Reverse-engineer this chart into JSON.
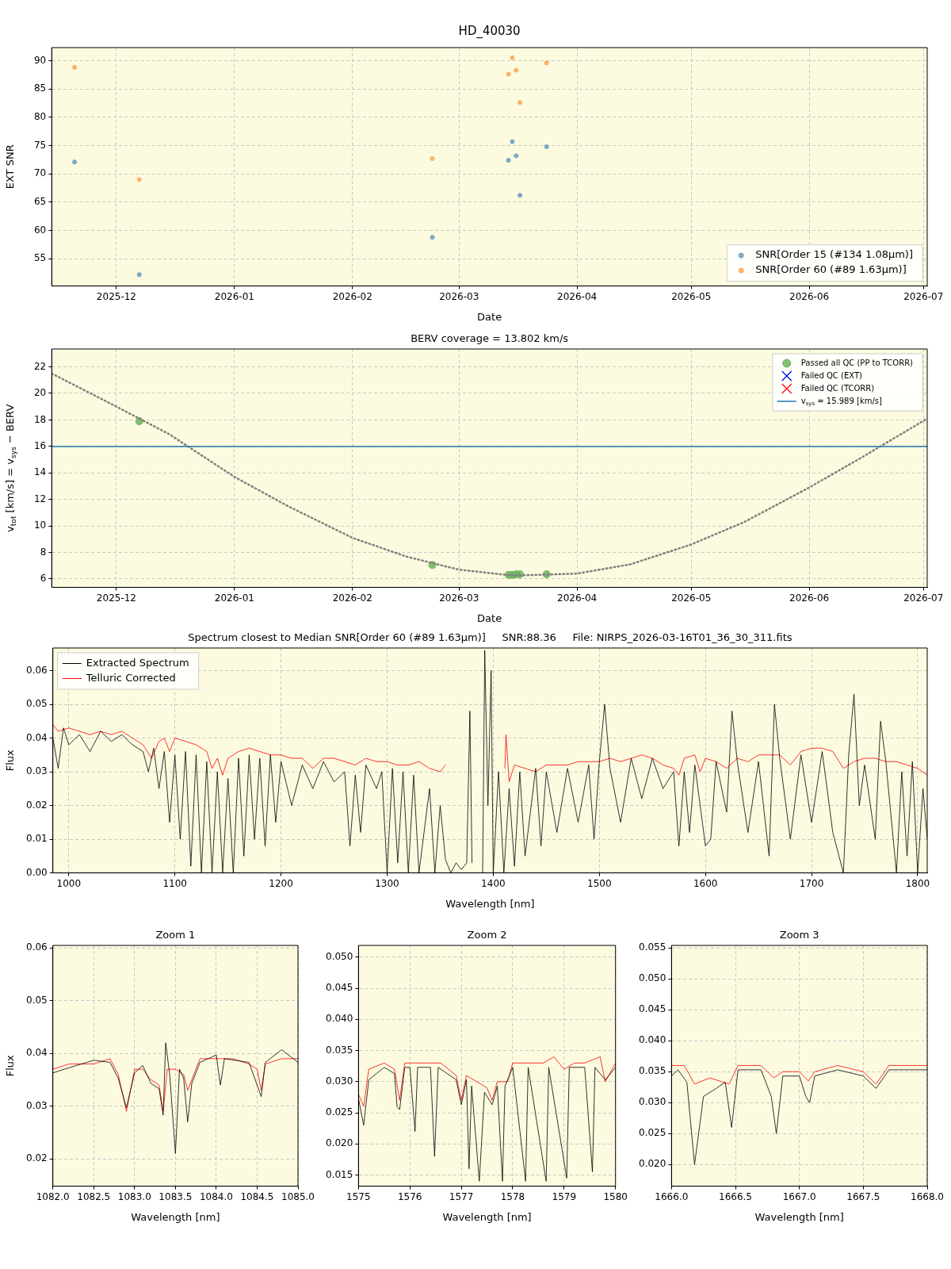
{
  "chart_data": [
    {
      "type": "scatter",
      "title": "HD_40030",
      "xlabel": "Date",
      "ylabel": "EXT SNR",
      "x": [
        "2025-11-20",
        "2025-12-07",
        "2026-02-22",
        "2026-03-14",
        "2026-03-15",
        "2026-03-16",
        "2026-03-17",
        "2026-03-24"
      ],
      "series": [
        {
          "name": "SNR[Order 15 (#134 1.08μm)]",
          "color": "#6a9fc0",
          "values": [
            72.1,
            52.2,
            58.8,
            72.4,
            75.7,
            73.2,
            66.2,
            74.8
          ]
        },
        {
          "name": "SNR[Order 60 (#89 1.63μm)]",
          "color": "#fda85a",
          "values": [
            88.8,
            69.0,
            72.7,
            87.6,
            90.5,
            88.3,
            82.6,
            89.6
          ]
        }
      ],
      "xlim": [
        "2025-11-14",
        "2026-07-02"
      ],
      "xticks": [
        "2025-12",
        "2026-01",
        "2026-02",
        "2026-03",
        "2026-04",
        "2026-05",
        "2026-06",
        "2026-07"
      ],
      "ylim": [
        50.2,
        92.3
      ],
      "yticks": [
        55,
        60,
        65,
        70,
        75,
        80,
        85,
        90
      ],
      "grid": true,
      "legend": "bottom right",
      "marker": "circle"
    },
    {
      "type": "scatter",
      "title": "BERV coverage = 13.802 km/s",
      "xlabel": "Date",
      "ylabel": "v$_{tot}$ [km/s] = v$_{sys}$ − BERV",
      "x": [
        "2025-12-07",
        "2026-02-22",
        "2026-03-14",
        "2026-03-15",
        "2026-03-16",
        "2026-03-17",
        "2026-03-24"
      ],
      "series": [
        {
          "type": "line",
          "color": "#808080",
          "line_style": "dotted",
          "marker": "none",
          "x": [
            "2025-11-14",
            "2025-12-01",
            "2025-12-15",
            "2026-01-01",
            "2026-01-15",
            "2026-02-01",
            "2026-02-15",
            "2026-03-01",
            "2026-03-15",
            "2026-04-01",
            "2026-04-15",
            "2026-05-01",
            "2026-05-15",
            "2026-06-01",
            "2026-06-15",
            "2026-07-02"
          ],
          "values": [
            21.5,
            19.0,
            16.9,
            13.7,
            11.5,
            9.1,
            7.7,
            6.7,
            6.25,
            6.4,
            7.1,
            8.6,
            10.3,
            12.9,
            15.2,
            18.1
          ]
        },
        {
          "name": "Passed all QC (PP to TCORR)",
          "color": "#6cb35e",
          "values": [
            17.9,
            7.05,
            6.3,
            6.3,
            6.35,
            6.35,
            6.35
          ]
        },
        {
          "name": "Failed QC (EXT)",
          "color": "#0000ff",
          "marker": "cross",
          "values": [
            null,
            null,
            null,
            null,
            null,
            null,
            null
          ]
        },
        {
          "name": "Failed QC (TCORR)",
          "color": "#ff0000",
          "marker": "cross",
          "values": [
            null,
            null,
            null,
            null,
            null,
            null,
            null
          ]
        }
      ],
      "ref_lines": [
        {
          "axis": "y",
          "value": 15.989,
          "label": "v$_{sys}$ = 15.989 [km/s]",
          "color": "#1f77b4"
        }
      ],
      "xlim": [
        "2025-11-14",
        "2026-07-02"
      ],
      "xticks": [
        "2025-12",
        "2026-01",
        "2026-02",
        "2026-03",
        "2026-04",
        "2026-05",
        "2026-06",
        "2026-07"
      ],
      "ylim": [
        5.36,
        23.35
      ],
      "yticks": [
        6,
        8,
        10,
        12,
        14,
        16,
        18,
        20,
        22
      ],
      "grid": true,
      "legend": "top right",
      "marker": "circle"
    },
    {
      "type": "line",
      "title": "Spectrum closest to Median SNR[Order 60 (#89 1.63μm)]     SNR:88.36     File: NIRPS_2026-03-16T01_36_30_311.fits",
      "xlabel": "Wavelength [nm]",
      "ylabel": "Flux",
      "series": [
        {
          "name": "Extracted Spectrum",
          "color": "#000000",
          "x": [
            985,
            990,
            995,
            1000,
            1010,
            1020,
            1030,
            1040,
            1050,
            1060,
            1070,
            1075,
            1080,
            1085,
            1090,
            1095,
            1100,
            1105,
            1110,
            1115,
            1120,
            1125,
            1130,
            1135,
            1140,
            1145,
            1150,
            1155,
            1160,
            1165,
            1170,
            1175,
            1180,
            1185,
            1190,
            1195,
            1200,
            1210,
            1220,
            1230,
            1240,
            1250,
            1260,
            1265,
            1270,
            1275,
            1280,
            1290,
            1295,
            1300,
            1305,
            1310,
            1315,
            1320,
            1325,
            1330,
            1340,
            1345,
            1350,
            1355,
            1360,
            1365,
            1370,
            1375,
            1378,
            1380,
            1385,
            1390,
            1392,
            1395,
            1398,
            1400,
            1405,
            1410,
            1415,
            1420,
            1425,
            1430,
            1440,
            1445,
            1450,
            1460,
            1470,
            1480,
            1490,
            1495,
            1500,
            1505,
            1510,
            1520,
            1530,
            1540,
            1550,
            1560,
            1570,
            1575,
            1580,
            1585,
            1590,
            1600,
            1605,
            1610,
            1620,
            1625,
            1630,
            1640,
            1650,
            1660,
            1665,
            1670,
            1680,
            1690,
            1700,
            1710,
            1720,
            1730,
            1735,
            1740,
            1745,
            1750,
            1760,
            1765,
            1770,
            1780,
            1785,
            1790,
            1795,
            1800,
            1805,
            1809
          ],
          "values": [
            0.04,
            0.031,
            0.043,
            0.038,
            0.041,
            0.036,
            0.042,
            0.039,
            0.041,
            0.038,
            0.036,
            0.03,
            0.037,
            0.025,
            0.036,
            0.015,
            0.035,
            0.01,
            0.036,
            0.002,
            0.035,
            0.0,
            0.033,
            0.0,
            0.03,
            0.0,
            0.028,
            0.0,
            0.034,
            0.005,
            0.035,
            0.01,
            0.034,
            0.008,
            0.035,
            0.015,
            0.033,
            0.02,
            0.032,
            0.025,
            0.033,
            0.027,
            0.03,
            0.008,
            0.029,
            0.012,
            0.032,
            0.025,
            0.03,
            0.0,
            0.031,
            0.003,
            0.03,
            0.0,
            0.029,
            0.0,
            0.025,
            0.0,
            0.02,
            0.004,
            0.0,
            0.003,
            0.001,
            0.003,
            0.048,
            0.003,
            null,
            0.0,
            0.066,
            0.02,
            0.06,
            0.0,
            0.03,
            0.0,
            0.025,
            0.002,
            0.03,
            0.005,
            0.031,
            0.008,
            0.03,
            0.012,
            0.031,
            0.015,
            0.032,
            0.01,
            0.033,
            0.05,
            0.031,
            0.015,
            0.034,
            0.022,
            0.034,
            0.025,
            0.03,
            0.008,
            0.03,
            0.012,
            0.032,
            0.008,
            0.01,
            0.033,
            0.018,
            0.048,
            0.033,
            0.012,
            0.033,
            0.005,
            0.05,
            0.034,
            0.01,
            0.035,
            0.015,
            0.036,
            0.012,
            0.0,
            0.035,
            0.053,
            0.02,
            0.032,
            0.01,
            0.045,
            0.033,
            0.0,
            0.03,
            0.005,
            0.033,
            0.0,
            0.025,
            0.01
          ]
        },
        {
          "name": "Telluric Corrected",
          "color": "#ff0000",
          "x": [
            985,
            990,
            1000,
            1010,
            1020,
            1030,
            1040,
            1050,
            1060,
            1070,
            1078,
            1085,
            1090,
            1095,
            1100,
            1110,
            1120,
            1130,
            1135,
            1140,
            1145,
            1150,
            1160,
            1170,
            1180,
            1190,
            1200,
            1210,
            1220,
            1230,
            1240,
            1250,
            1260,
            1270,
            1280,
            1290,
            1300,
            1310,
            1320,
            1330,
            1340,
            1350,
            1355,
            1380,
            1411,
            1412,
            1415,
            1420,
            1430,
            1440,
            1450,
            1460,
            1470,
            1480,
            1490,
            1500,
            1510,
            1520,
            1530,
            1540,
            1550,
            1560,
            1570,
            1575,
            1580,
            1590,
            1595,
            1600,
            1610,
            1620,
            1630,
            1640,
            1650,
            1660,
            1670,
            1680,
            1690,
            1700,
            1710,
            1720,
            1730,
            1740,
            1750,
            1760,
            1770,
            1780,
            1790,
            1800,
            1809
          ],
          "values": [
            0.044,
            0.042,
            0.043,
            0.042,
            0.041,
            0.042,
            0.041,
            0.042,
            0.04,
            0.038,
            0.034,
            0.039,
            0.04,
            0.036,
            0.04,
            0.039,
            0.038,
            0.036,
            0.031,
            0.034,
            0.029,
            0.034,
            0.036,
            0.037,
            0.036,
            0.035,
            0.035,
            0.034,
            0.034,
            0.031,
            0.034,
            0.034,
            0.033,
            0.032,
            0.034,
            0.033,
            0.033,
            0.032,
            0.032,
            0.033,
            0.031,
            0.03,
            0.032,
            null,
            0.031,
            0.041,
            0.027,
            0.032,
            0.031,
            0.03,
            0.032,
            0.032,
            0.032,
            0.033,
            0.033,
            0.033,
            0.034,
            0.033,
            0.034,
            0.035,
            0.034,
            0.032,
            0.031,
            0.029,
            0.034,
            0.035,
            0.03,
            0.034,
            0.033,
            0.031,
            0.034,
            0.033,
            0.035,
            0.035,
            0.035,
            0.032,
            0.036,
            0.037,
            0.037,
            0.036,
            0.031,
            0.033,
            0.034,
            0.034,
            0.033,
            0.033,
            0.032,
            0.031,
            0.029
          ]
        }
      ],
      "xlim": [
        985,
        1809
      ],
      "xticks": [
        1000,
        1100,
        1200,
        1300,
        1400,
        1500,
        1600,
        1700,
        1800
      ],
      "ylim": [
        0,
        0.0667
      ],
      "yticks": [
        {
          "value": 0,
          "label": "0.00"
        },
        {
          "value": 0.01,
          "label": "0.01"
        },
        {
          "value": 0.02,
          "label": "0.02"
        },
        {
          "value": 0.03,
          "label": "0.03"
        },
        {
          "value": 0.04,
          "label": "0.04"
        },
        {
          "value": 0.05,
          "label": "0.05"
        },
        {
          "value": 0.06,
          "label": "0.06"
        }
      ],
      "grid": true,
      "legend": "top left"
    },
    {
      "type": "line",
      "title": "Zoom 1",
      "xlabel": "Wavelength [nm]",
      "ylabel": "Flux",
      "series": [
        {
          "color": "#000000",
          "x": [
            1082,
            1082.2,
            1082.5,
            1082.7,
            1082.8,
            1082.9,
            1083.0,
            1083.1,
            1083.2,
            1083.3,
            1083.35,
            1083.38,
            1083.43,
            1083.5,
            1083.55,
            1083.6,
            1083.65,
            1083.7,
            1083.8,
            1084.0,
            1084.05,
            1084.1,
            1084.4,
            1084.55,
            1084.6,
            1084.8,
            1085
          ],
          "values": [
            0.0363,
            0.0373,
            0.0387,
            0.0383,
            0.0353,
            0.0297,
            0.0363,
            0.0377,
            0.0343,
            0.0333,
            0.0283,
            0.042,
            0.036,
            0.021,
            0.037,
            0.0353,
            0.027,
            0.0343,
            0.0383,
            0.0397,
            0.034,
            0.039,
            0.0383,
            0.0318,
            0.0383,
            0.0407,
            0.0383
          ]
        },
        {
          "color": "#ff0000",
          "x": [
            1082,
            1082.2,
            1082.5,
            1082.7,
            1082.8,
            1082.9,
            1083.0,
            1083.1,
            1083.2,
            1083.3,
            1083.35,
            1083.4,
            1083.5,
            1083.6,
            1083.65,
            1083.7,
            1083.8,
            1084.0,
            1084.2,
            1084.4,
            1084.5,
            1084.55,
            1084.6,
            1084.8,
            1085
          ],
          "values": [
            0.037,
            0.038,
            0.038,
            0.039,
            0.036,
            0.029,
            0.037,
            0.037,
            0.035,
            0.034,
            0.029,
            0.037,
            0.037,
            0.036,
            0.033,
            0.035,
            0.039,
            0.039,
            0.039,
            0.038,
            0.037,
            0.033,
            0.038,
            0.039,
            0.039
          ]
        }
      ],
      "xlim": [
        1082,
        1085
      ],
      "xticks": [
        {
          "value": 1082,
          "label": "1082.0"
        },
        {
          "value": 1082.5,
          "label": "1082.5"
        },
        {
          "value": 1083,
          "label": "1083.0"
        },
        {
          "value": 1083.5,
          "label": "1083.5"
        },
        {
          "value": 1084,
          "label": "1084.0"
        },
        {
          "value": 1084.5,
          "label": "1084.5"
        },
        {
          "value": 1085,
          "label": "1085.0"
        }
      ],
      "ylim": [
        0.0148,
        0.0605
      ],
      "yticks": [
        0.02,
        0.03,
        0.04,
        0.05,
        0.06
      ],
      "grid": true
    },
    {
      "type": "line",
      "title": "Zoom 2",
      "xlabel": "Wavelength [nm]",
      "series": [
        {
          "color": "#000000",
          "x": [
            1575,
            1575.1,
            1575.2,
            1575.5,
            1575.7,
            1575.75,
            1575.8,
            1575.9,
            1576.0,
            1576.1,
            1576.15,
            1576.4,
            1576.48,
            1576.55,
            1576.9,
            1577.0,
            1577.1,
            1577.15,
            1577.2,
            1577.35,
            1577.45,
            1577.6,
            1577.7,
            1577.8,
            1577.85,
            1578.0,
            1578.25,
            1578.3,
            1578.65,
            1578.7,
            1579.05,
            1579.1,
            1579.4,
            1579.55,
            1579.6,
            1579.8,
            1580
          ],
          "values": [
            0.0273,
            0.023,
            0.0303,
            0.0323,
            0.0313,
            0.026,
            0.0255,
            0.0323,
            0.0323,
            0.022,
            0.0323,
            0.0323,
            0.018,
            0.0323,
            0.0303,
            0.0263,
            0.0303,
            0.016,
            0.0293,
            0.014,
            0.0283,
            0.0263,
            0.0293,
            0.014,
            0.0293,
            0.0323,
            0.014,
            0.0323,
            0.014,
            0.0323,
            0.0145,
            0.0323,
            0.0323,
            0.0155,
            0.0323,
            0.0303,
            0.0323
          ]
        },
        {
          "color": "#ff0000",
          "x": [
            1575,
            1575.1,
            1575.2,
            1575.5,
            1575.7,
            1575.8,
            1575.9,
            1576.3,
            1576.6,
            1576.9,
            1577.0,
            1577.1,
            1577.3,
            1577.5,
            1577.6,
            1577.7,
            1577.9,
            1578.0,
            1578.3,
            1578.6,
            1578.8,
            1579.0,
            1579.2,
            1579.4,
            1579.7,
            1579.8,
            1580
          ],
          "values": [
            0.028,
            0.026,
            0.032,
            0.033,
            0.032,
            0.027,
            0.033,
            0.033,
            0.033,
            0.031,
            0.027,
            0.031,
            0.03,
            0.029,
            0.027,
            0.03,
            0.03,
            0.033,
            0.033,
            0.033,
            0.034,
            0.032,
            0.033,
            0.033,
            0.034,
            0.03,
            0.033
          ]
        }
      ],
      "xlim": [
        1575,
        1580
      ],
      "xticks": [
        1575,
        1576,
        1577,
        1578,
        1579,
        1580
      ],
      "ylim": [
        0.0132,
        0.0519
      ],
      "yticks": [
        {
          "value": 0.015,
          "label": "0.015"
        },
        {
          "value": 0.02,
          "label": "0.020"
        },
        {
          "value": 0.025,
          "label": "0.025"
        },
        {
          "value": 0.03,
          "label": "0.030"
        },
        {
          "value": 0.035,
          "label": "0.035"
        },
        {
          "value": 0.04,
          "label": "0.040"
        },
        {
          "value": 0.045,
          "label": "0.045"
        },
        {
          "value": 0.05,
          "label": "0.050"
        }
      ],
      "grid": true
    },
    {
      "type": "line",
      "title": "Zoom 3",
      "xlabel": "Wavelength [nm]",
      "series": [
        {
          "color": "#000000",
          "x": [
            1666,
            1666.05,
            1666.12,
            1666.18,
            1666.25,
            1666.35,
            1666.42,
            1666.47,
            1666.52,
            1666.7,
            1666.78,
            1666.82,
            1666.87,
            1667.0,
            1667.05,
            1667.08,
            1667.12,
            1667.3,
            1667.5,
            1667.6,
            1667.7,
            1668
          ],
          "values": [
            0.0343,
            0.0353,
            0.0333,
            0.02,
            0.031,
            0.0323,
            0.0333,
            0.026,
            0.0353,
            0.0353,
            0.031,
            0.025,
            0.0343,
            0.0343,
            0.031,
            0.03,
            0.0343,
            0.0353,
            0.0343,
            0.0323,
            0.0353,
            0.0353
          ]
        },
        {
          "color": "#ff0000",
          "x": [
            1666,
            1666.1,
            1666.18,
            1666.3,
            1666.45,
            1666.52,
            1666.7,
            1666.8,
            1666.87,
            1667.0,
            1667.07,
            1667.12,
            1667.3,
            1667.5,
            1667.6,
            1667.7,
            1668
          ],
          "values": [
            0.036,
            0.036,
            0.033,
            0.034,
            0.033,
            0.036,
            0.036,
            0.034,
            0.035,
            0.035,
            0.0335,
            0.035,
            0.036,
            0.035,
            0.033,
            0.036,
            0.036
          ]
        }
      ],
      "xlim": [
        1666,
        1668
      ],
      "xticks": [
        {
          "value": 1666,
          "label": "1666.0"
        },
        {
          "value": 1666.5,
          "label": "1666.5"
        },
        {
          "value": 1667,
          "label": "1667.0"
        },
        {
          "value": 1667.5,
          "label": "1667.5"
        },
        {
          "value": 1668,
          "label": "1668.0"
        }
      ],
      "ylim": [
        0.0165,
        0.0554
      ],
      "yticks": [
        {
          "value": 0.02,
          "label": "0.020"
        },
        {
          "value": 0.025,
          "label": "0.025"
        },
        {
          "value": 0.03,
          "label": "0.030"
        },
        {
          "value": 0.035,
          "label": "0.035"
        },
        {
          "value": 0.04,
          "label": "0.040"
        },
        {
          "value": 0.045,
          "label": "0.045"
        },
        {
          "value": 0.05,
          "label": "0.050"
        },
        {
          "value": 0.055,
          "label": "0.055"
        }
      ],
      "grid": true
    }
  ]
}
